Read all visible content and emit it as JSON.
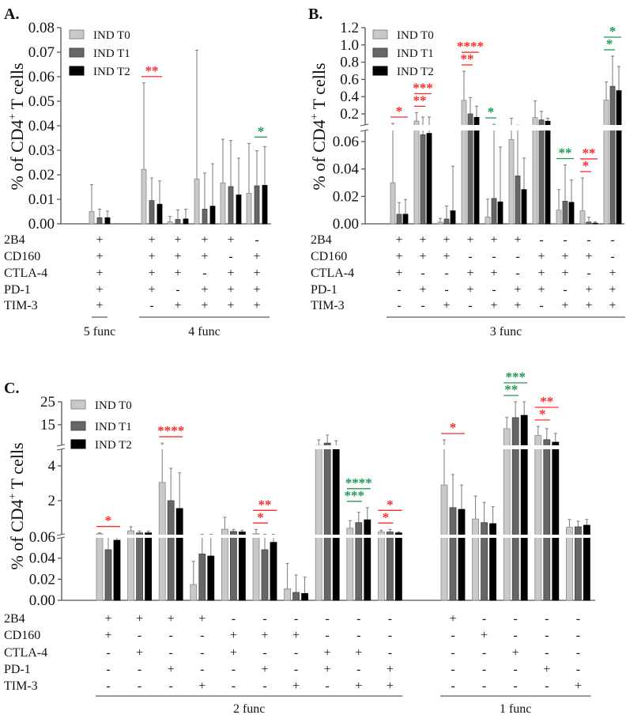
{
  "colors": {
    "T0": "#c9c9c9",
    "T1": "#666666",
    "T2": "#000000",
    "sig_red": "#ff2a2a",
    "sig_green": "#1f9a55"
  },
  "chart_data": [
    {
      "panel": "A.",
      "type": "bar",
      "ylabel": [
        "% of CD4",
        "+",
        " T cells"
      ],
      "legend": [
        "IND T0",
        "IND T1",
        "IND T2"
      ],
      "legend_position": "top-left",
      "ylim": [
        0,
        0.08
      ],
      "yticks": [
        0,
        0.01,
        0.02,
        0.03,
        0.04,
        0.05,
        0.06,
        0.07,
        0.08
      ],
      "ytick_labels": [
        "0.00",
        "0.01",
        "0.02",
        "0.03",
        "0.04",
        "0.05",
        "0.06",
        "0.07",
        "0.08"
      ],
      "error_bars": "mean with upper error (value = top of error bar)",
      "groups": [
        {
          "values": [
            0.005,
            0.0025,
            0.0025
          ],
          "error_top": [
            0.016,
            0.006,
            0.0052
          ]
        },
        {
          "values": [
            0.0222,
            0.0095,
            0.008
          ],
          "error_top": [
            0.0575,
            0.0187,
            0.0175
          ]
        },
        {
          "values": [
            0.0008,
            0.0018,
            0.002
          ],
          "error_top": [
            0.003,
            0.0057,
            0.006
          ]
        },
        {
          "values": [
            0.0183,
            0.006,
            0.0072
          ],
          "error_top": [
            0.0708,
            0.0207,
            0.0245
          ]
        },
        {
          "values": [
            0.0167,
            0.0152,
            0.0118
          ],
          "error_top": [
            0.0345,
            0.034,
            0.0268
          ]
        },
        {
          "values": [
            0.0125,
            0.0155,
            0.0157
          ],
          "error_top": [
            0.0328,
            0.0298,
            0.0315
          ]
        }
      ],
      "significance": [
        {
          "group": 1,
          "from": 0,
          "to": 2,
          "label": "**",
          "color": "red"
        },
        {
          "group": 5,
          "from": 1,
          "to": 2,
          "label": "*",
          "color": "green"
        }
      ],
      "markers": {
        "labels": [
          "2B4",
          "CD160",
          "CTLA-4",
          "PD-1",
          "TIM-3"
        ],
        "rows": [
          [
            "+",
            "+",
            "+",
            "+",
            "+",
            "-"
          ],
          [
            "+",
            "+",
            "+",
            "+",
            "-",
            "+"
          ],
          [
            "+",
            "+",
            "+",
            "-",
            "+",
            "+"
          ],
          [
            "+",
            "+",
            "-",
            "+",
            "+",
            "+"
          ],
          [
            "+",
            "-",
            "+",
            "+",
            "+",
            "+"
          ]
        ]
      },
      "func_groups": [
        {
          "label": "5 func",
          "groups": [
            0
          ]
        },
        {
          "label": "4 func",
          "groups": [
            1,
            2,
            3,
            4,
            5
          ]
        }
      ]
    },
    {
      "panel": "B.",
      "type": "bar",
      "ylabel": [
        "% of CD4",
        "+",
        " T cells"
      ],
      "legend": [
        "IND T0",
        "IND T1",
        "IND T2"
      ],
      "legend_position": "top-left",
      "ylim": [
        0,
        1.2
      ],
      "y_axis_break": [
        0.068,
        0.07
      ],
      "yticks": [
        0,
        0.02,
        0.04,
        0.06,
        0.2,
        0.4,
        0.6,
        0.8,
        1.0,
        1.2
      ],
      "ytick_labels": [
        "0.00",
        "0.02",
        "0.04",
        "0.06",
        "0.2",
        "0.4",
        "0.6",
        "0.8",
        "1.0",
        "1.2"
      ],
      "groups": [
        {
          "values": [
            0.03,
            0.007,
            0.007
          ],
          "error_top": [
            0.09,
            0.0155,
            0.0178
          ]
        },
        {
          "values": [
            0.117,
            0.065,
            0.066
          ],
          "error_top": [
            0.215,
            0.163,
            0.163
          ]
        },
        {
          "values": [
            0.0012,
            0.0035,
            0.0095
          ],
          "error_top": [
            0.004,
            0.013,
            0.042
          ]
        },
        {
          "values": [
            0.357,
            0.2,
            0.16
          ],
          "error_top": [
            0.695,
            0.39,
            0.29
          ]
        },
        {
          "values": [
            0.005,
            0.0185,
            0.016
          ],
          "error_top": [
            0.018,
            0.08,
            0.056
          ]
        },
        {
          "values": [
            0.0615,
            0.035,
            0.025
          ],
          "error_top": [
            0.15,
            0.07,
            0.048
          ]
        },
        {
          "values": [
            0.157,
            0.13,
            0.115
          ],
          "error_top": [
            0.35,
            0.23,
            0.15
          ]
        },
        {
          "values": [
            0.01,
            0.0165,
            0.0157
          ],
          "error_top": [
            0.025,
            0.043,
            0.032
          ]
        },
        {
          "values": [
            0.0095,
            0.0013,
            0.0005
          ],
          "error_top": [
            0.0335,
            0.0048,
            0.0015
          ]
        },
        {
          "values": [
            0.36,
            0.52,
            0.47
          ],
          "error_top": [
            0.57,
            0.87,
            0.75
          ]
        }
      ],
      "significance": [
        {
          "group": 0,
          "from": 0,
          "to": 2,
          "label": "*",
          "color": "red"
        },
        {
          "group": 1,
          "from": 0,
          "to": 1,
          "label": "**",
          "color": "red"
        },
        {
          "group": 1,
          "from": 0,
          "to": 2,
          "label": "***",
          "color": "red"
        },
        {
          "group": 3,
          "from": 0,
          "to": 1,
          "label": "**",
          "color": "red"
        },
        {
          "group": 3,
          "from": 0,
          "to": 2,
          "label": "****",
          "color": "red"
        },
        {
          "group": 4,
          "from": 0,
          "to": 1,
          "label": "*",
          "color": "green"
        },
        {
          "group": 7,
          "from": 0,
          "to": 2,
          "label": "**",
          "color": "green"
        },
        {
          "group": 8,
          "from": 0,
          "to": 1,
          "label": "*",
          "color": "red"
        },
        {
          "group": 8,
          "from": 0,
          "to": 2,
          "label": "**",
          "color": "red"
        },
        {
          "group": 9,
          "from": 0,
          "to": 1,
          "label": "*",
          "color": "green"
        },
        {
          "group": 9,
          "from": 0,
          "to": 2,
          "label": "*",
          "color": "green"
        }
      ],
      "markers": {
        "labels": [
          "2B4",
          "CD160",
          "CTLA-4",
          "PD-1",
          "TIM-3"
        ],
        "rows": [
          [
            "+",
            "+",
            "+",
            "+",
            "+",
            "+",
            "-",
            "-",
            "-",
            "-"
          ],
          [
            "+",
            "+",
            "+",
            "-",
            "-",
            "-",
            "+",
            "+",
            "+",
            "-"
          ],
          [
            "+",
            "-",
            "-",
            "+",
            "+",
            "-",
            "+",
            "+",
            "-",
            "+"
          ],
          [
            "-",
            "+",
            "-",
            "+",
            "-",
            "+",
            "+",
            "-",
            "+",
            "+"
          ],
          [
            "-",
            "-",
            "+",
            "-",
            "+",
            "+",
            "-",
            "+",
            "+",
            "+"
          ]
        ]
      },
      "func_groups": [
        {
          "label": "3 func",
          "groups": [
            0,
            1,
            2,
            3,
            4,
            5,
            6,
            7,
            8,
            9
          ]
        }
      ]
    },
    {
      "panel": "C.",
      "type": "bar",
      "ylabel": [
        "% of CD4",
        "+",
        " T cells"
      ],
      "legend": [
        "IND T0",
        "IND T1",
        "IND T2"
      ],
      "legend_position": "top-left",
      "ylim": [
        0,
        25
      ],
      "y_axis_breaks": [
        0.06,
        5
      ],
      "yticks": [
        0,
        0.02,
        0.04,
        0.06,
        2,
        4,
        15,
        25
      ],
      "ytick_labels": [
        "0.00",
        "0.02",
        "0.04",
        "0.06",
        "2",
        "4",
        "15",
        "25"
      ],
      "groups": [
        {
          "values": [
            0.1,
            0.048,
            0.057
          ],
          "error_top": [
            0.15,
            0.06,
            0.06
          ]
        },
        {
          "values": [
            0.27,
            0.15,
            0.15
          ],
          "error_top": [
            0.5,
            0.25,
            0.25
          ]
        },
        {
          "values": [
            3.05,
            2.0,
            1.55
          ],
          "error_top": [
            7,
            3.86,
            3.6
          ]
        },
        {
          "values": [
            0.015,
            0.044,
            0.042
          ],
          "error_top": [
            0.037,
            0.062,
            0.062
          ]
        },
        {
          "values": [
            0.36,
            0.23,
            0.2
          ],
          "error_top": [
            1.05,
            0.35,
            0.3
          ]
        },
        {
          "values": [
            0.1,
            0.048,
            0.055
          ],
          "error_top": [
            0.35,
            0.062,
            0.062
          ]
        },
        {
          "values": [
            0.011,
            0.0075,
            0.0065
          ],
          "error_top": [
            0.035,
            0.024,
            0.022
          ]
        },
        {
          "values": [
            6,
            7,
            5.7
          ],
          "error_top": [
            8.4,
            10.5,
            8
          ]
        },
        {
          "values": [
            0.42,
            0.74,
            0.9
          ],
          "error_top": [
            0.85,
            1.33,
            1.6
          ]
        },
        {
          "values": [
            0.2,
            0.2,
            0.15
          ],
          "error_top": [
            0.3,
            0.35,
            0.2
          ]
        },
        {
          "values": [
            2.9,
            1.6,
            1.5
          ],
          "error_top": [
            8.4,
            3.5,
            2.9
          ]
        },
        {
          "values": [
            0.95,
            0.74,
            0.68
          ],
          "error_top": [
            2.27,
            1.9,
            1.65
          ]
        },
        {
          "values": [
            13.3,
            18.1,
            19.1
          ],
          "error_top": [
            18.2,
            25,
            25
          ]
        },
        {
          "values": [
            10.3,
            8.5,
            7.4
          ],
          "error_top": [
            14.3,
            13.3,
            11.2
          ]
        },
        {
          "values": [
            0.47,
            0.5,
            0.59
          ],
          "error_top": [
            0.92,
            0.82,
            0.92
          ]
        }
      ],
      "significance": [
        {
          "group": 0,
          "from": 0,
          "to": 2,
          "label": "*",
          "color": "red"
        },
        {
          "group": 2,
          "from": 0,
          "to": 2,
          "label": "****",
          "color": "red"
        },
        {
          "group": 5,
          "from": 0,
          "to": 1,
          "label": "*",
          "color": "red"
        },
        {
          "group": 5,
          "from": 0,
          "to": 2,
          "label": "**",
          "color": "red"
        },
        {
          "group": 8,
          "from": 0,
          "to": 1,
          "label": "***",
          "color": "green"
        },
        {
          "group": 8,
          "from": 0,
          "to": 2,
          "label": "****",
          "color": "green"
        },
        {
          "group": 9,
          "from": 0,
          "to": 1,
          "label": "*",
          "color": "red"
        },
        {
          "group": 9,
          "from": 0,
          "to": 2,
          "label": "*",
          "color": "red"
        },
        {
          "group": 10,
          "from": 0,
          "to": 2,
          "label": "*",
          "color": "red"
        },
        {
          "group": 12,
          "from": 0,
          "to": 1,
          "label": "**",
          "color": "green"
        },
        {
          "group": 12,
          "from": 0,
          "to": 2,
          "label": "***",
          "color": "green"
        },
        {
          "group": 13,
          "from": 0,
          "to": 1,
          "label": "*",
          "color": "red"
        },
        {
          "group": 13,
          "from": 0,
          "to": 2,
          "label": "**",
          "color": "red"
        }
      ],
      "markers": {
        "labels": [
          "2B4",
          "CD160",
          "CTLA-4",
          "PD-1",
          "TIM-3"
        ],
        "rows": [
          [
            "+",
            "+",
            "+",
            "+",
            "-",
            "-",
            "-",
            "-",
            "-",
            "-",
            "+",
            "-",
            "-",
            "-",
            "-"
          ],
          [
            "+",
            "-",
            "-",
            "-",
            "+",
            "+",
            "+",
            "-",
            "-",
            "-",
            "-",
            "+",
            "-",
            "-",
            "-"
          ],
          [
            "-",
            "+",
            "-",
            "-",
            "+",
            "-",
            "-",
            "+",
            "+",
            "-",
            "-",
            "-",
            "+",
            "-",
            "-"
          ],
          [
            "-",
            "-",
            "+",
            "-",
            "-",
            "+",
            "-",
            "+",
            "-",
            "+",
            "-",
            "-",
            "-",
            "+",
            "-"
          ],
          [
            "-",
            "-",
            "-",
            "+",
            "-",
            "-",
            "+",
            "-",
            "+",
            "+",
            "-",
            "-",
            "-",
            "-",
            "+"
          ]
        ]
      },
      "func_groups": [
        {
          "label": "2 func",
          "groups": [
            0,
            1,
            2,
            3,
            4,
            5,
            6,
            7,
            8,
            9
          ]
        },
        {
          "label": "1 func",
          "groups": [
            10,
            11,
            12,
            13,
            14
          ]
        }
      ]
    }
  ]
}
